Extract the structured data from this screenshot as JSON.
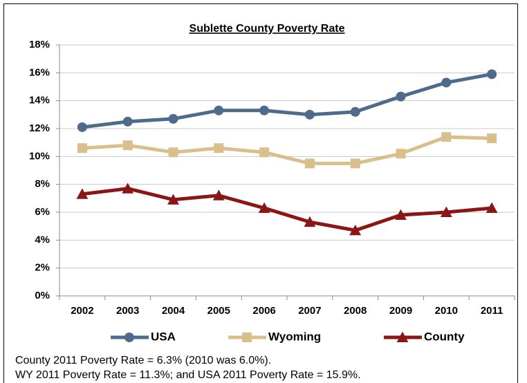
{
  "chart_data": {
    "type": "line",
    "title": "Sublette County Poverty Rate",
    "categories": [
      "2002",
      "2003",
      "2004",
      "2005",
      "2006",
      "2007",
      "2008",
      "2009",
      "2010",
      "2011"
    ],
    "series": [
      {
        "name": "USA",
        "color": "#4e6b8c",
        "marker": "circle",
        "values": [
          12.1,
          12.5,
          12.7,
          13.3,
          13.3,
          13.0,
          13.2,
          14.3,
          15.3,
          15.9
        ]
      },
      {
        "name": "Wyoming",
        "color": "#d8bf8c",
        "marker": "square",
        "values": [
          10.6,
          10.8,
          10.3,
          10.6,
          10.3,
          9.5,
          9.5,
          10.2,
          11.4,
          11.3
        ]
      },
      {
        "name": "County",
        "color": "#8b1616",
        "marker": "triangle",
        "values": [
          7.3,
          7.7,
          6.9,
          7.2,
          6.3,
          5.3,
          4.7,
          5.8,
          6.0,
          6.3
        ]
      }
    ],
    "ylim": [
      0,
      18
    ],
    "yticks": [
      {
        "value": 0,
        "label": "0%"
      },
      {
        "value": 2,
        "label": "2%"
      },
      {
        "value": 4,
        "label": "4%"
      },
      {
        "value": 6,
        "label": "6%"
      },
      {
        "value": 8,
        "label": "8%"
      },
      {
        "value": 10,
        "label": "10%"
      },
      {
        "value": 12,
        "label": "12%"
      },
      {
        "value": 14,
        "label": "14%"
      },
      {
        "value": 16,
        "label": "16%"
      },
      {
        "value": 18,
        "label": "18%"
      }
    ],
    "grid": true,
    "legend": "bottom",
    "notes": [
      "County 2011 Poverty Rate = 6.3% (2010 was 6.0%).",
      "WY 2011 Poverty Rate = 11.3%; and USA 2011 Poverty Rate = 15.9%."
    ]
  }
}
